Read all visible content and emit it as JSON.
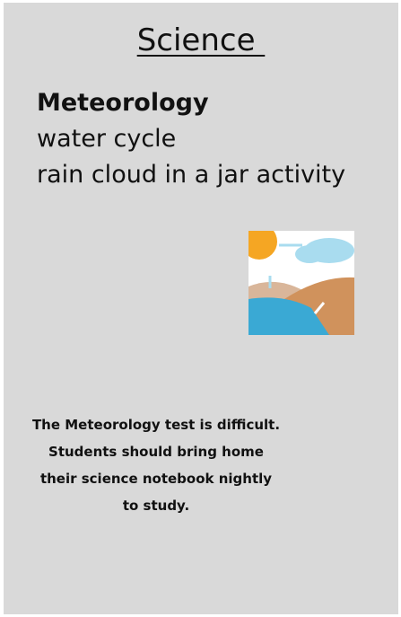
{
  "header": {
    "title": "Science "
  },
  "topic": {
    "heading": "Meteorology",
    "lines": [
      "water cycle",
      "rain cloud in a jar activity"
    ]
  },
  "note": {
    "text": "The Meteorology test is difficult. Students should bring home their science notebook nightly to study."
  }
}
